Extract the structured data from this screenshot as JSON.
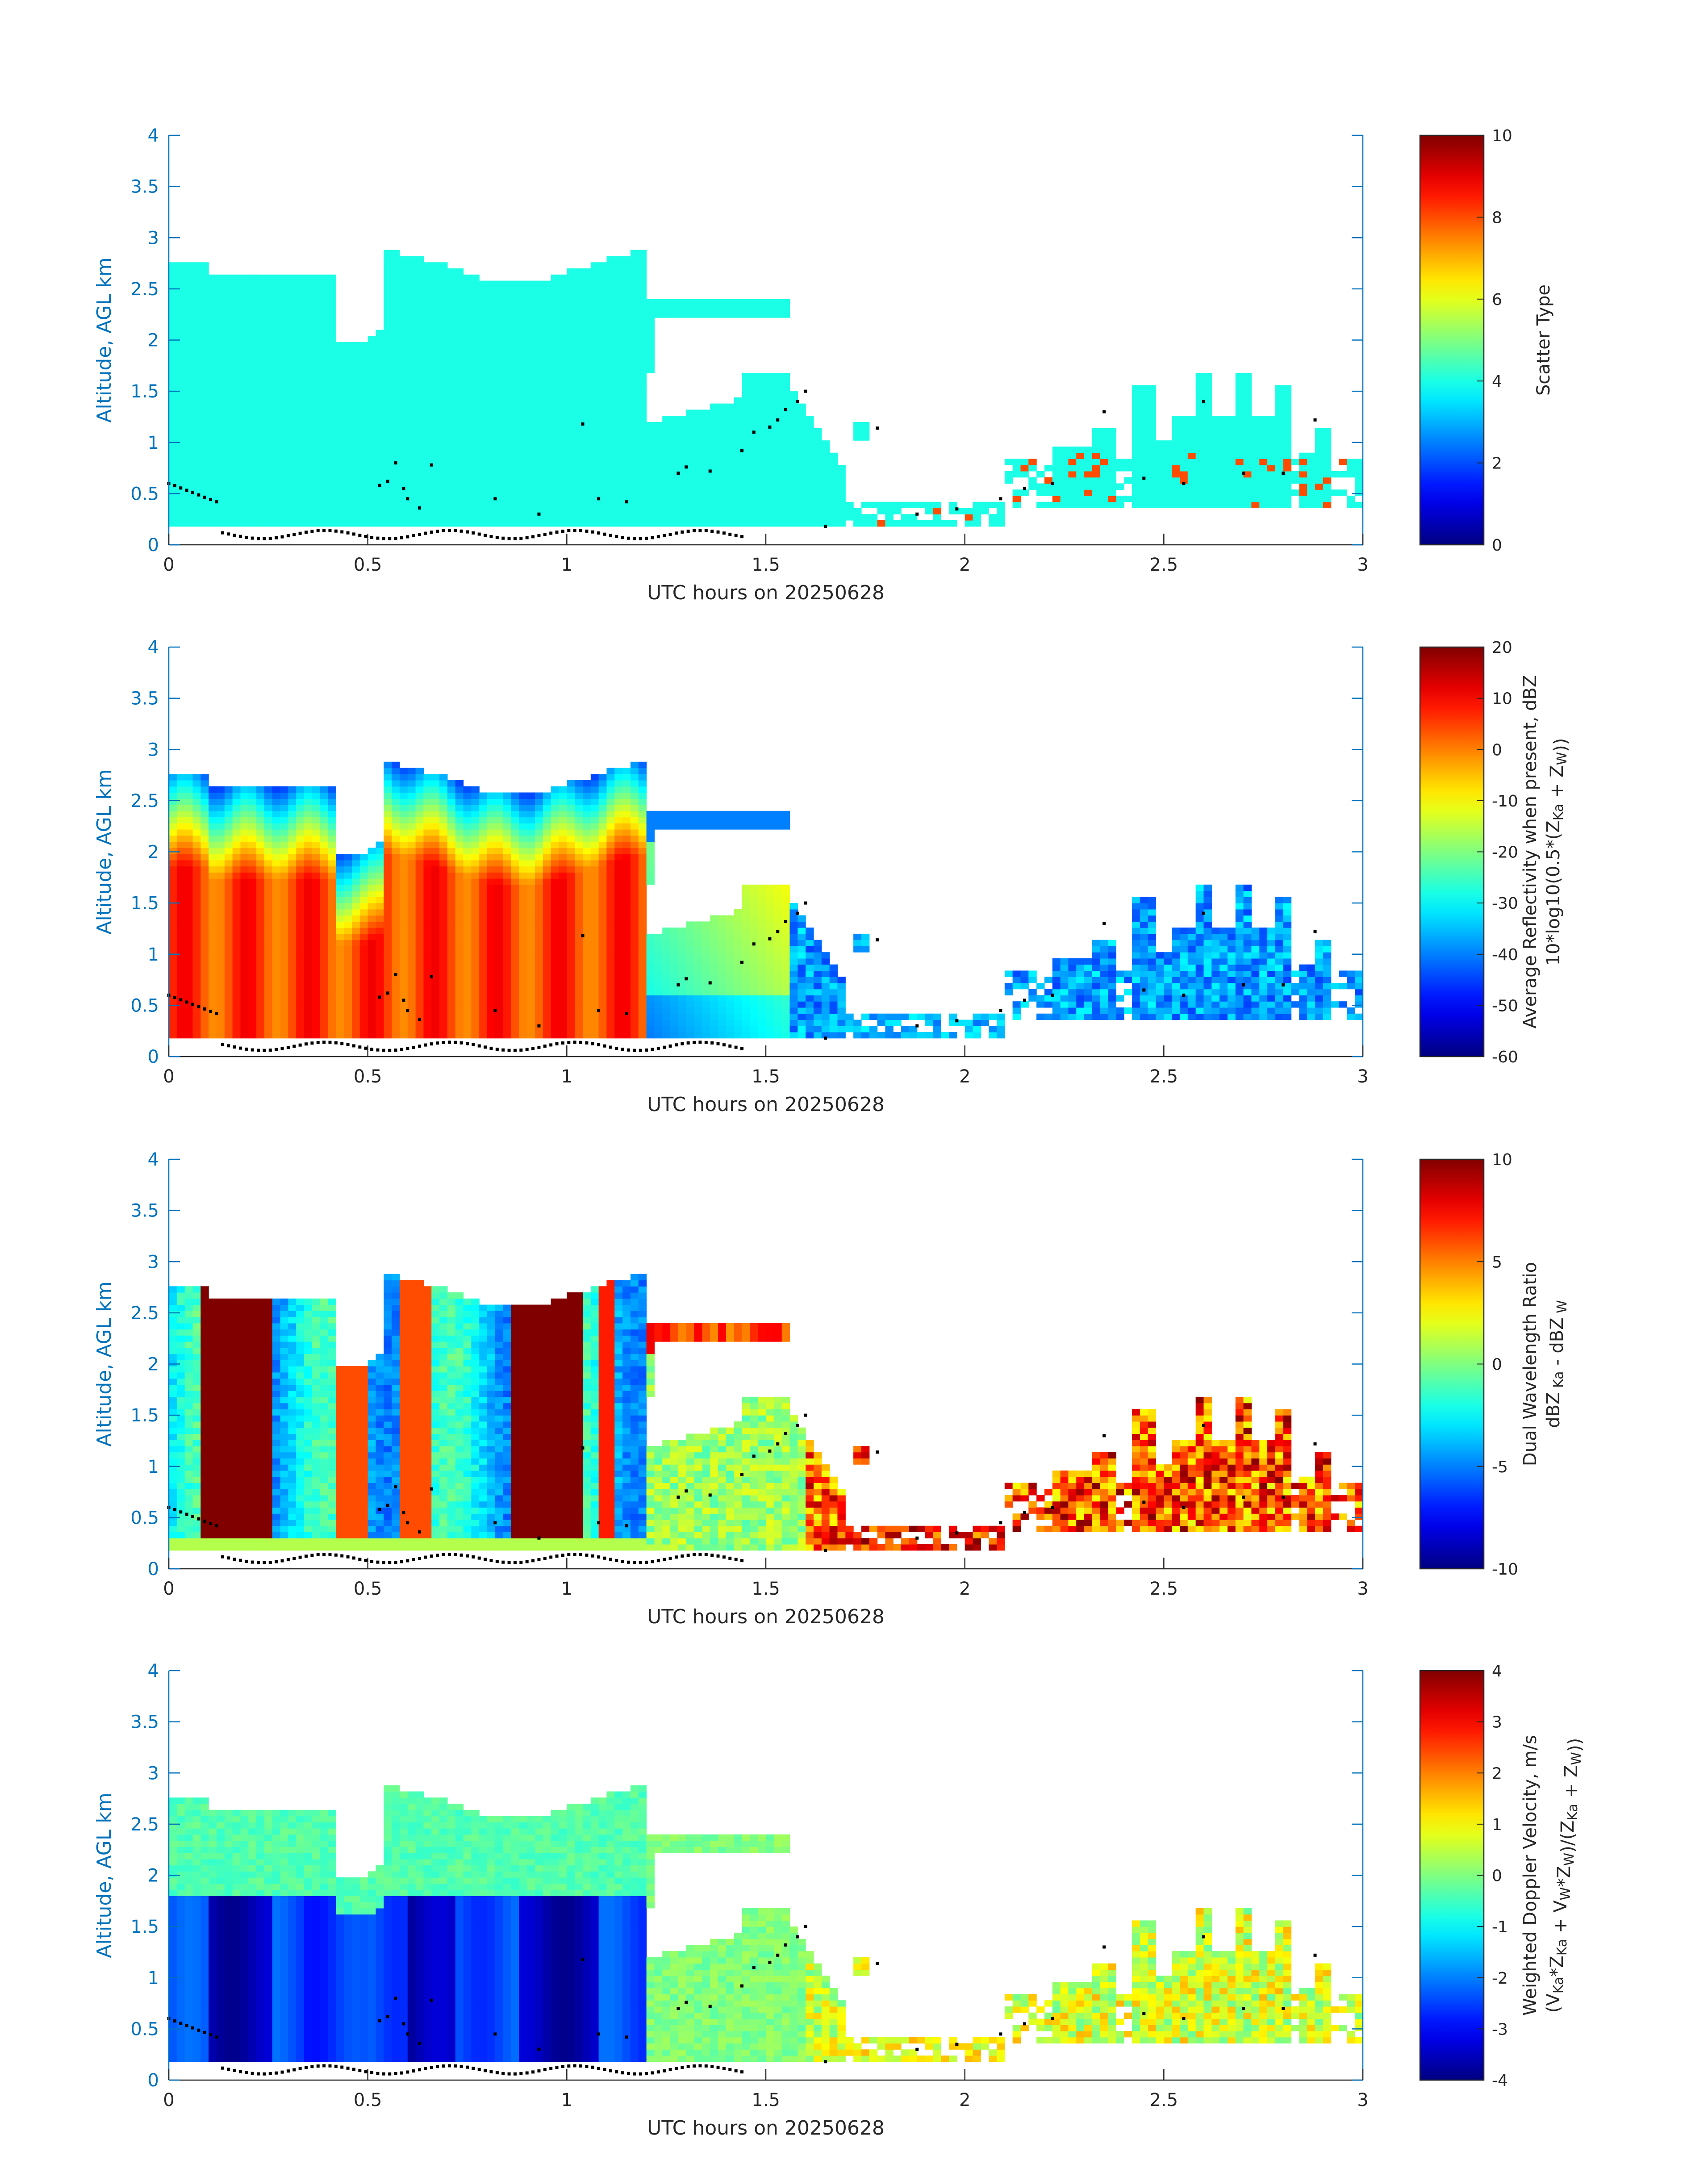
{
  "chart_data": [
    {
      "type": "heatmap",
      "panel": "scatter-type",
      "xlabel": "UTC hours on 20250628",
      "ylabel": "Altitude, AGL km",
      "xlim": [
        0,
        3
      ],
      "ylim": [
        0,
        4
      ],
      "xticks": [
        "0",
        "0.5",
        "1",
        "1.5",
        "2",
        "2.5",
        "3"
      ],
      "yticks": [
        "0",
        "0.5",
        "1",
        "1.5",
        "2",
        "2.5",
        "3",
        "3.5",
        "4"
      ],
      "colorbar": {
        "label": "Scatter Type",
        "clim": [
          0,
          10
        ],
        "ticks": [
          "0",
          "2",
          "4",
          "6",
          "8",
          "10"
        ]
      },
      "fields": "uniform value 4 (cyan) throughout cloud regions; isolated 8 (orange) pixels near 1.75-2.9 h"
    },
    {
      "type": "heatmap",
      "panel": "reflectivity",
      "xlabel": "UTC hours on 20250628",
      "ylabel": "Altitude, AGL km",
      "xlim": [
        0,
        3
      ],
      "ylim": [
        0,
        4
      ],
      "xticks": [
        "0",
        "0.5",
        "1",
        "1.5",
        "2",
        "2.5",
        "3"
      ],
      "yticks": [
        "0",
        "0.5",
        "1",
        "1.5",
        "2",
        "2.5",
        "3",
        "3.5",
        "4"
      ],
      "colorbar": {
        "label_line1": "Average Reflectivity when present, dBZ",
        "label_line2": {
          "pre": "10*log10(0.5*(Z",
          "sub1": "Ka",
          "mid": " + Z",
          "sub2": "W",
          "post": "))"
        },
        "clim": [
          -60,
          20
        ],
        "ticks": [
          "-60",
          "-50",
          "-40",
          "-30",
          "-20",
          "-10",
          "0",
          "10",
          "20"
        ]
      },
      "fields": "about 5 dBZ in main cloud 0-1.15 h below 2 km, -30 to -50 dBZ near cloud top and in late scattered cloud"
    },
    {
      "type": "heatmap",
      "panel": "dual-wavelength-ratio",
      "xlabel": "UTC hours on 20250628",
      "ylabel": "Altitude, AGL km",
      "xlim": [
        0,
        3
      ],
      "ylim": [
        0,
        4
      ],
      "xticks": [
        "0",
        "0.5",
        "1",
        "1.5",
        "2",
        "2.5",
        "3"
      ],
      "yticks": [
        "0",
        "0.5",
        "1",
        "1.5",
        "2",
        "2.5",
        "3",
        "3.5",
        "4"
      ],
      "colorbar": {
        "label_line1": "Dual Wavelength Ratio",
        "label_line2": {
          "pre": "dBZ",
          "sub1": " Ka",
          "mid": " - dBZ",
          "sub2": " W",
          "post": ""
        },
        "clim": [
          -10,
          10
        ],
        "ticks": [
          "-10",
          "-5",
          "0",
          "5",
          "10"
        ]
      },
      "fields": "saturated 10 dB columns at 0.1-0.25 h and 0.85-1.05 h, -6 dB at 0.3-0.4 h, about 0 dB in 1.2-1.6 h cloud"
    },
    {
      "type": "heatmap",
      "panel": "doppler-velocity",
      "xlabel": "UTC hours on 20250628",
      "ylabel": "Altitude, AGL km",
      "xlim": [
        0,
        3
      ],
      "ylim": [
        0,
        4
      ],
      "xticks": [
        "0",
        "0.5",
        "1",
        "1.5",
        "2",
        "2.5",
        "3"
      ],
      "yticks": [
        "0",
        "0.5",
        "1",
        "1.5",
        "2",
        "2.5",
        "3",
        "3.5",
        "4"
      ],
      "colorbar": {
        "label_line1": "Weighted Doppler Velocity, m/s",
        "label_line2": {
          "pre": "(V",
          "sub1": "Ka",
          "mid": "*Z",
          "sub2": "Ka",
          "post": " + V",
          "sub3": "W",
          "post2": "*Z",
          "sub4": "W",
          "post3": ")/(Z",
          "sub5": "Ka",
          "post4": " + Z",
          "sub6": "W",
          "post5": "))"
        },
        "clim": [
          -4,
          4
        ],
        "ticks": [
          "-4",
          "-3",
          "-2",
          "-1",
          "0",
          "1",
          "2",
          "3",
          "4"
        ]
      },
      "fields": "-3.5 m/s fall streaks in main cloud below 1.8 km, about -0.5 m/s near top and in 1.2-1.6 h cloud"
    }
  ],
  "colors": {
    "axis_y": "#0072BD",
    "axis_x": "#262626",
    "colormap": "jet",
    "markers": "#000000"
  }
}
